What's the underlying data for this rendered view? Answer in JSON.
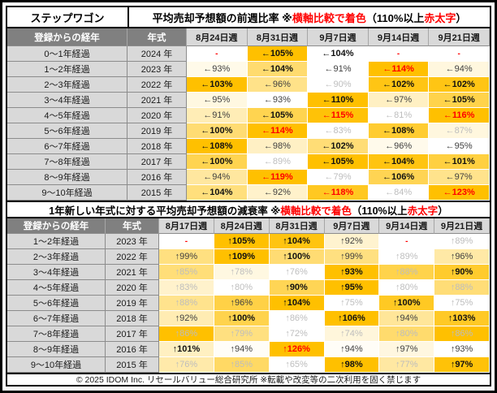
{
  "model_name": "ステップワゴン",
  "footer_text": "© 2025 IDOM Inc. リセールバリュー総合研究所 ※転載や改変等の二次利用を固く禁じます",
  "colors": {
    "red": "#ff0000",
    "scale_max_orange": "#FFC000",
    "scale_min_white": "#FFFFFF",
    "header_dark_gray": "#808080",
    "header_light_gray": "#D9D9D9"
  },
  "chart_data": [
    {
      "type": "heatmap",
      "title_segments": [
        {
          "text": "平均売却予想額の前週比率 ※",
          "color": "black"
        },
        {
          "text": "横軸比較で着色",
          "color": "red"
        },
        {
          "text": "（110%以上 ",
          "color": "black"
        },
        {
          "text": "赤太字",
          "color": "red"
        },
        {
          "text": "）",
          "color": "black"
        }
      ],
      "corner_label": "登録からの経年",
      "year_label": "年式",
      "columns": [
        "8月24日週",
        "8月31日週",
        "9月7日週",
        "9月14日週",
        "9月21日週"
      ],
      "colorscale": {
        "min": "#FFFFFF",
        "max": "#FFC000",
        "normalization": "per-row"
      },
      "rows": [
        {
          "age": "0〜1年経過",
          "year": "2024 年",
          "values_pct": [
            null,
            105,
            104,
            null,
            null
          ],
          "cells": [
            {
              "text": "-",
              "style": "dash",
              "bg": "#FFFFFF"
            },
            {
              "text": "←105%",
              "style": "bold",
              "bg": "#FFC000"
            },
            {
              "text": "←104%",
              "style": "bold",
              "bg": "#FFFFFF"
            },
            {
              "text": "-",
              "style": "dash",
              "bg": "#FFFFFF"
            },
            {
              "text": "-",
              "style": "dash",
              "bg": "#FFFFFF"
            }
          ]
        },
        {
          "age": "1〜2年経過",
          "year": "2023 年",
          "values_pct": [
            93,
            104,
            91,
            114,
            94
          ],
          "cells": [
            {
              "text": "←93%",
              "style": "norm",
              "bg": "#FFFAE9"
            },
            {
              "text": "←104%",
              "style": "bold",
              "bg": "#FFDB6F"
            },
            {
              "text": "←91%",
              "style": "norm",
              "bg": "#FFFFFF"
            },
            {
              "text": "←114%",
              "style": "red",
              "bg": "#FFC000"
            },
            {
              "text": "←94%",
              "style": "norm",
              "bg": "#FFF7DE"
            }
          ]
        },
        {
          "age": "2〜3年経過",
          "year": "2022 年",
          "values_pct": [
            103,
            96,
            90,
            102,
            102
          ],
          "cells": [
            {
              "text": "←103%",
              "style": "bold",
              "bg": "#FFC000"
            },
            {
              "text": "←96%",
              "style": "norm",
              "bg": "#FFE289"
            },
            {
              "text": "←90%",
              "style": "gray",
              "bg": "#FFFFFF"
            },
            {
              "text": "←102%",
              "style": "bold",
              "bg": "#FFC514"
            },
            {
              "text": "←102%",
              "style": "bold",
              "bg": "#FFC514"
            }
          ]
        },
        {
          "age": "3〜4年経過",
          "year": "2021 年",
          "values_pct": [
            95,
            93,
            110,
            97,
            105
          ],
          "cells": [
            {
              "text": "←95%",
              "style": "norm",
              "bg": "#FFF8E1"
            },
            {
              "text": "←93%",
              "style": "norm",
              "bg": "#FFFFFF"
            },
            {
              "text": "←110%",
              "style": "bold",
              "bg": "#FFC000"
            },
            {
              "text": "←97%",
              "style": "norm",
              "bg": "#FFF0C3"
            },
            {
              "text": "←105%",
              "style": "bold",
              "bg": "#FFD34B"
            }
          ]
        },
        {
          "age": "4〜5年経過",
          "year": "2020 年",
          "values_pct": [
            91,
            105,
            115,
            81,
            116
          ],
          "cells": [
            {
              "text": "←91%",
              "style": "norm",
              "bg": "#FFEDB6"
            },
            {
              "text": "←105%",
              "style": "bold",
              "bg": "#FFD450"
            },
            {
              "text": "←115%",
              "style": "red",
              "bg": "#FFC207"
            },
            {
              "text": "←81%",
              "style": "gray",
              "bg": "#FFFFFF"
            },
            {
              "text": "←116%",
              "style": "red",
              "bg": "#FFC000"
            }
          ]
        },
        {
          "age": "5〜6年経過",
          "year": "2019 年",
          "values_pct": [
            100,
            114,
            83,
            108,
            87
          ],
          "cells": [
            {
              "text": "←100%",
              "style": "bold",
              "bg": "#FFDC73"
            },
            {
              "text": "←114%",
              "style": "red",
              "bg": "#FFC000"
            },
            {
              "text": "←83%",
              "style": "gray",
              "bg": "#FFFFFF"
            },
            {
              "text": "←108%",
              "style": "bold",
              "bg": "#FFCC31"
            },
            {
              "text": "←87%",
              "style": "gray",
              "bg": "#FFF7DE"
            }
          ]
        },
        {
          "age": "6〜7年経過",
          "year": "2018 年",
          "values_pct": [
            108,
            98,
            102,
            96,
            95
          ],
          "cells": [
            {
              "text": "←108%",
              "style": "bold",
              "bg": "#FFC000"
            },
            {
              "text": "←98%",
              "style": "norm",
              "bg": "#FFF0C4"
            },
            {
              "text": "←102%",
              "style": "bold",
              "bg": "#FFDD76"
            },
            {
              "text": "←96%",
              "style": "norm",
              "bg": "#FFFAEB"
            },
            {
              "text": "←95%",
              "style": "norm",
              "bg": "#FFFFFF"
            }
          ]
        },
        {
          "age": "7〜8年経過",
          "year": "2017 年",
          "values_pct": [
            100,
            89,
            105,
            104,
            101
          ],
          "cells": [
            {
              "text": "←100%",
              "style": "bold",
              "bg": "#FFD450"
            },
            {
              "text": "←89%",
              "style": "gray",
              "bg": "#FFFFFF"
            },
            {
              "text": "←105%",
              "style": "bold",
              "bg": "#FFC000"
            },
            {
              "text": "←104%",
              "style": "bold",
              "bg": "#FFC410"
            },
            {
              "text": "←101%",
              "style": "bold",
              "bg": "#FFD040"
            }
          ]
        },
        {
          "age": "8〜9年経過",
          "year": "2016 年",
          "values_pct": [
            94,
            119,
            79,
            106,
            97
          ],
          "cells": [
            {
              "text": "←94%",
              "style": "norm",
              "bg": "#FFE79F"
            },
            {
              "text": "←119%",
              "style": "red",
              "bg": "#FFC000"
            },
            {
              "text": "←79%",
              "style": "gray",
              "bg": "#FFFFFF"
            },
            {
              "text": "←106%",
              "style": "bold",
              "bg": "#FFD453"
            },
            {
              "text": "←97%",
              "style": "norm",
              "bg": "#FFE38C"
            }
          ]
        },
        {
          "age": "9〜10年経過",
          "year": "2015 年",
          "values_pct": [
            104,
            92,
            118,
            84,
            123
          ],
          "cells": [
            {
              "text": "←104%",
              "style": "bold",
              "bg": "#FFDF7C"
            },
            {
              "text": "←92%",
              "style": "norm",
              "bg": "#FFF2CB"
            },
            {
              "text": "←118%",
              "style": "red",
              "bg": "#FFC821"
            },
            {
              "text": "←84%",
              "style": "gray",
              "bg": "#FFFFFF"
            },
            {
              "text": "←123%",
              "style": "red",
              "bg": "#FFC000"
            }
          ]
        }
      ]
    },
    {
      "type": "heatmap",
      "title_segments": [
        {
          "text": "1年新しい年式に対する平均売却予想額の減衰率 ※",
          "color": "black"
        },
        {
          "text": "横軸比較で着色",
          "color": "red"
        },
        {
          "text": "（110%以上 ",
          "color": "black"
        },
        {
          "text": "赤太字",
          "color": "red"
        },
        {
          "text": "）",
          "color": "black"
        }
      ],
      "corner_label": "登録からの経年",
      "year_label": "年式",
      "columns": [
        "8月17日週",
        "8月24日週",
        "8月31日週",
        "9月7日週",
        "9月14日週",
        "9月21日週"
      ],
      "colorscale": {
        "min": "#FFFFFF",
        "max": "#FFC000",
        "normalization": "per-row"
      },
      "rows": [
        {
          "age": "1〜2年経過",
          "year": "2023 年",
          "values_pct": [
            null,
            105,
            104,
            92,
            null,
            89
          ],
          "cells": [
            {
              "text": "-",
              "style": "dash",
              "bg": "#FFFFFF"
            },
            {
              "text": "↑105%",
              "style": "bold",
              "bg": "#FFC000"
            },
            {
              "text": "↑104%",
              "style": "bold",
              "bg": "#FFC410"
            },
            {
              "text": "↑92%",
              "style": "norm",
              "bg": "#FFF3CF"
            },
            {
              "text": "-",
              "style": "dash",
              "bg": "#FFFFFF"
            },
            {
              "text": "↑89%",
              "style": "gray",
              "bg": "#FFFFFF"
            }
          ]
        },
        {
          "age": "2〜3年経過",
          "year": "2022 年",
          "values_pct": [
            99,
            109,
            100,
            99,
            89,
            96
          ],
          "cells": [
            {
              "text": "↑99%",
              "style": "norm",
              "bg": "#FFE080"
            },
            {
              "text": "↑109%",
              "style": "bold",
              "bg": "#FFC000"
            },
            {
              "text": "↑100%",
              "style": "bold",
              "bg": "#FFDC73"
            },
            {
              "text": "↑99%",
              "style": "norm",
              "bg": "#FFE080"
            },
            {
              "text": "↑89%",
              "style": "gray",
              "bg": "#FFFFFF"
            },
            {
              "text": "↑96%",
              "style": "norm",
              "bg": "#FFE9A6"
            }
          ]
        },
        {
          "age": "3〜4年経過",
          "year": "2021 年",
          "values_pct": [
            85,
            78,
            76,
            93,
            88,
            90
          ],
          "cells": [
            {
              "text": "↑85%",
              "style": "gray",
              "bg": "#FFDE78"
            },
            {
              "text": "↑78%",
              "style": "gray",
              "bg": "#FFF8E1"
            },
            {
              "text": "↑76%",
              "style": "gray",
              "bg": "#FFFFFF"
            },
            {
              "text": "↑93%",
              "style": "bold",
              "bg": "#FFC000"
            },
            {
              "text": "↑88%",
              "style": "gray",
              "bg": "#FFD34B"
            },
            {
              "text": "↑90%",
              "style": "bold",
              "bg": "#FFCB2D"
            }
          ]
        },
        {
          "age": "4〜5年経過",
          "year": "2020 年",
          "values_pct": [
            83,
            80,
            90,
            95,
            80,
            88
          ],
          "cells": [
            {
              "text": "↑83%",
              "style": "gray",
              "bg": "#FFF2CC"
            },
            {
              "text": "↑80%",
              "style": "gray",
              "bg": "#FFFFFF"
            },
            {
              "text": "↑90%",
              "style": "bold",
              "bg": "#FFD555"
            },
            {
              "text": "↑95%",
              "style": "bold",
              "bg": "#FFC000"
            },
            {
              "text": "↑80%",
              "style": "gray",
              "bg": "#FFFFFF"
            },
            {
              "text": "↑88%",
              "style": "gray",
              "bg": "#FFDD77"
            }
          ]
        },
        {
          "age": "5〜6年経過",
          "year": "2019 年",
          "values_pct": [
            88,
            96,
            104,
            75,
            100,
            75
          ],
          "cells": [
            {
              "text": "↑88%",
              "style": "gray",
              "bg": "#FFE38D"
            },
            {
              "text": "↑96%",
              "style": "norm",
              "bg": "#FFD146"
            },
            {
              "text": "↑104%",
              "style": "bold",
              "bg": "#FFC000"
            },
            {
              "text": "↑75%",
              "style": "gray",
              "bg": "#FFFFFF"
            },
            {
              "text": "↑100%",
              "style": "bold",
              "bg": "#FFC923"
            },
            {
              "text": "↑75%",
              "style": "gray",
              "bg": "#FFFFFF"
            }
          ]
        },
        {
          "age": "6〜7年経過",
          "year": "2018 年",
          "values_pct": [
            92,
            100,
            86,
            106,
            94,
            103
          ],
          "cells": [
            {
              "text": "↑92%",
              "style": "norm",
              "bg": "#FFECB3"
            },
            {
              "text": "↑100%",
              "style": "bold",
              "bg": "#FFD34D"
            },
            {
              "text": "↑86%",
              "style": "gray",
              "bg": "#FFFFFF"
            },
            {
              "text": "↑106%",
              "style": "bold",
              "bg": "#FFC000"
            },
            {
              "text": "↑94%",
              "style": "norm",
              "bg": "#FFE699"
            },
            {
              "text": "↑103%",
              "style": "bold",
              "bg": "#FFC926"
            }
          ]
        },
        {
          "age": "7〜8年経過",
          "year": "2017 年",
          "values_pct": [
            86,
            79,
            72,
            74,
            80,
            86
          ],
          "cells": [
            {
              "text": "↑86%",
              "style": "gray",
              "bg": "#FFC000"
            },
            {
              "text": "↑79%",
              "style": "gray",
              "bg": "#FFE080"
            },
            {
              "text": "↑72%",
              "style": "gray",
              "bg": "#FFFFFF"
            },
            {
              "text": "↑74%",
              "style": "gray",
              "bg": "#FFF6DB"
            },
            {
              "text": "↑80%",
              "style": "gray",
              "bg": "#FFDB6D"
            },
            {
              "text": "↑86%",
              "style": "gray",
              "bg": "#FFC000"
            }
          ]
        },
        {
          "age": "8〜9年経過",
          "year": "2016 年",
          "values_pct": [
            101,
            94,
            126,
            94,
            97,
            93
          ],
          "cells": [
            {
              "text": "↑101%",
              "style": "bold",
              "bg": "#FFF0C1"
            },
            {
              "text": "↑94%",
              "style": "norm",
              "bg": "#FFFDF7"
            },
            {
              "text": "↑126%",
              "style": "red",
              "bg": "#FFC000"
            },
            {
              "text": "↑94%",
              "style": "norm",
              "bg": "#FFFDF7"
            },
            {
              "text": "↑97%",
              "style": "norm",
              "bg": "#FFF7E0"
            },
            {
              "text": "↑93%",
              "style": "norm",
              "bg": "#FFFFFF"
            }
          ]
        },
        {
          "age": "9〜10年経過",
          "year": "2015 年",
          "values_pct": [
            76,
            85,
            65,
            98,
            77,
            97
          ],
          "cells": [
            {
              "text": "↑76%",
              "style": "gray",
              "bg": "#FFEAAA"
            },
            {
              "text": "↑85%",
              "style": "gray",
              "bg": "#FFD964"
            },
            {
              "text": "↑65%",
              "style": "gray",
              "bg": "#FFFFFF"
            },
            {
              "text": "↑98%",
              "style": "bold",
              "bg": "#FFC000"
            },
            {
              "text": "↑77%",
              "style": "gray",
              "bg": "#FFE8A2"
            },
            {
              "text": "↑97%",
              "style": "bold",
              "bg": "#FFC208"
            }
          ]
        }
      ]
    }
  ]
}
